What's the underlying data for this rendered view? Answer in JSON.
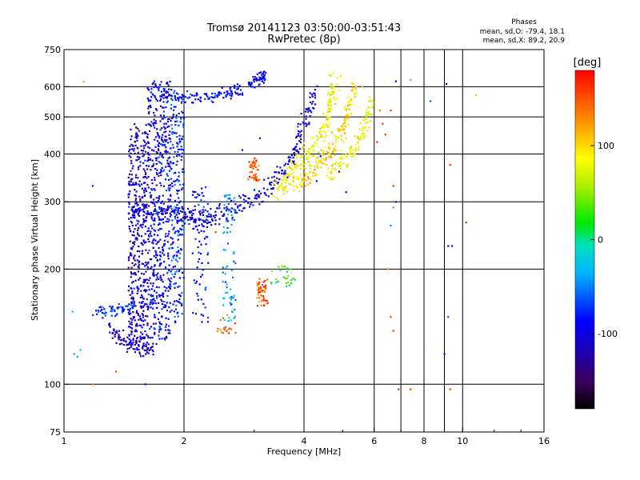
{
  "chart_data": {
    "type": "scatter",
    "title": "Tromsø 20141123 03:50:00-03:51:43",
    "subtitle": "RwPretec (8p)",
    "xlabel": "Frequency [MHz]",
    "ylabel": "Stationary phase Virtual Height [km]",
    "x_scale": "log",
    "y_scale": "log",
    "xlim": [
      1,
      16
    ],
    "ylim": [
      75,
      750
    ],
    "x_ticks": [
      1,
      2,
      4,
      6,
      8,
      10,
      16
    ],
    "x_tick_labels": [
      "1",
      "2",
      "4",
      "6",
      "8",
      "10",
      "16"
    ],
    "x_grid": [
      2,
      4,
      6,
      7,
      8,
      9,
      10
    ],
    "y_ticks": [
      75,
      100,
      200,
      300,
      400,
      500,
      600,
      750
    ],
    "y_tick_labels": [
      "75",
      "100",
      "200",
      "300",
      "400",
      "500",
      "600",
      "750"
    ],
    "y_grid": [
      100,
      200,
      300,
      400,
      500,
      600
    ],
    "grid": true,
    "phases_header": "Phases",
    "stats_O": "mean, sd,O: -79.4, 18.1",
    "stats_X": "mean, sd,X:  89.2, 20.9",
    "colorbar": {
      "label": "[deg]",
      "min": -180,
      "max": 180,
      "ticks": [
        100,
        0,
        -100
      ],
      "tick_labels": [
        "100",
        "0",
        "-100"
      ]
    },
    "traces": [
      {
        "f": [
          1.48,
          1.6,
          1.75,
          1.9,
          2.05,
          2.2,
          2.4,
          2.65,
          2.95,
          3.3,
          3.6,
          3.85,
          4.05,
          4.3
        ],
        "h": [
          275,
          290,
          285,
          278,
          272,
          270,
          275,
          285,
          300,
          330,
          370,
          420,
          500,
          590
        ],
        "phase": -100,
        "spread": 0.03
      },
      {
        "f": [
          3.4,
          3.6,
          3.85,
          4.1,
          4.4,
          4.6,
          4.7,
          4.8
        ],
        "h": [
          320,
          340,
          370,
          400,
          440,
          500,
          560,
          620
        ],
        "phase": 85,
        "spread": 0.035
      },
      {
        "f": [
          3.8,
          4.1,
          4.4,
          4.7,
          5.0,
          5.2,
          5.35
        ],
        "h": [
          330,
          350,
          380,
          410,
          460,
          520,
          610
        ],
        "phase": 100,
        "spread": 0.03
      },
      {
        "f": [
          4.6,
          5.0,
          5.4,
          5.7,
          5.9
        ],
        "h": [
          350,
          380,
          420,
          470,
          560
        ],
        "phase": 80,
        "spread": 0.03
      },
      {
        "f": [
          1.75,
          2.0,
          2.3,
          2.6,
          2.8
        ],
        "h": [
          570,
          560,
          565,
          575,
          590
        ],
        "phase": -85,
        "spread": 0.02
      },
      {
        "f": [
          2.9,
          3.1,
          3.2
        ],
        "h": [
          610,
          630,
          640
        ],
        "phase": -90,
        "spread": 0.02
      },
      {
        "f": [
          1.2,
          1.35,
          1.5
        ],
        "h": [
          155,
          155,
          158
        ],
        "phase": -70,
        "spread": 0.02
      },
      {
        "f": [
          1.3,
          1.4,
          1.55,
          1.7
        ],
        "h": [
          140,
          130,
          123,
          125
        ],
        "phase": -115,
        "spread": 0.02
      }
    ],
    "clusters": [
      {
        "f": [
          1.45,
          1.62
        ],
        "h": [
          125,
          480
        ],
        "n": 420,
        "phase": -110
      },
      {
        "f": [
          1.62,
          1.85
        ],
        "h": [
          130,
          620
        ],
        "n": 520,
        "phase": -95
      },
      {
        "f": [
          1.85,
          2.0
        ],
        "h": [
          145,
          600
        ],
        "n": 220,
        "phase": -75
      },
      {
        "f": [
          2.1,
          2.3
        ],
        "h": [
          145,
          330
        ],
        "n": 80,
        "phase": -85
      },
      {
        "f": [
          2.5,
          2.7
        ],
        "h": [
          140,
          320
        ],
        "n": 70,
        "phase": -40
      },
      {
        "f": [
          3.05,
          3.25
        ],
        "h": [
          160,
          190
        ],
        "n": 45,
        "phase": 150
      },
      {
        "f": [
          2.9,
          3.1
        ],
        "h": [
          340,
          390
        ],
        "n": 40,
        "phase": 150
      },
      {
        "f": [
          3.3,
          3.8
        ],
        "h": [
          180,
          205
        ],
        "n": 25,
        "phase": 20
      },
      {
        "f": [
          2.4,
          2.7
        ],
        "h": [
          135,
          155
        ],
        "n": 18,
        "phase": 140
      }
    ],
    "scattered_points": [
      {
        "f": 1.06,
        "h": 120,
        "phase": -40
      },
      {
        "f": 1.08,
        "h": 118,
        "phase": -40
      },
      {
        "f": 1.1,
        "h": 123,
        "phase": -30
      },
      {
        "f": 1.05,
        "h": 155,
        "phase": -30
      },
      {
        "f": 1.18,
        "h": 330,
        "phase": -80
      },
      {
        "f": 1.12,
        "h": 618,
        "phase": 120
      },
      {
        "f": 1.18,
        "h": 100,
        "phase": 140
      },
      {
        "f": 1.35,
        "h": 108,
        "phase": 160
      },
      {
        "f": 1.6,
        "h": 100,
        "phase": -100
      },
      {
        "f": 6.8,
        "h": 620,
        "phase": -90
      },
      {
        "f": 7.4,
        "h": 625,
        "phase": 130
      },
      {
        "f": 8.3,
        "h": 550,
        "phase": -60
      },
      {
        "f": 9.1,
        "h": 610,
        "phase": -100
      },
      {
        "f": 10.8,
        "h": 570,
        "phase": 110
      },
      {
        "f": 6.3,
        "h": 480,
        "phase": 160
      },
      {
        "f": 6.6,
        "h": 520,
        "phase": 160
      },
      {
        "f": 6.2,
        "h": 520,
        "phase": 130
      },
      {
        "f": 6.4,
        "h": 450,
        "phase": 160
      },
      {
        "f": 6.1,
        "h": 430,
        "phase": 170
      },
      {
        "f": 6.7,
        "h": 330,
        "phase": 170
      },
      {
        "f": 6.8,
        "h": 300,
        "phase": -80
      },
      {
        "f": 6.7,
        "h": 290,
        "phase": -20
      },
      {
        "f": 6.6,
        "h": 260,
        "phase": -50
      },
      {
        "f": 6.5,
        "h": 200,
        "phase": 130
      },
      {
        "f": 6.6,
        "h": 150,
        "phase": 160
      },
      {
        "f": 6.7,
        "h": 138,
        "phase": 160
      },
      {
        "f": 6.9,
        "h": 97,
        "phase": 170
      },
      {
        "f": 7.4,
        "h": 97,
        "phase": 160
      },
      {
        "f": 9.3,
        "h": 97,
        "phase": 160
      },
      {
        "f": 9.3,
        "h": 375,
        "phase": 160
      },
      {
        "f": 9.2,
        "h": 230,
        "phase": -110
      },
      {
        "f": 9.4,
        "h": 230,
        "phase": -100
      },
      {
        "f": 10.2,
        "h": 265,
        "phase": 170
      },
      {
        "f": 9.2,
        "h": 150,
        "phase": -60
      },
      {
        "f": 9.0,
        "h": 120,
        "phase": -80
      },
      {
        "f": 4.4,
        "h": 395,
        "phase": -80
      },
      {
        "f": 4.3,
        "h": 340,
        "phase": -100
      },
      {
        "f": 3.7,
        "h": 200,
        "phase": 40
      },
      {
        "f": 3.4,
        "h": 188,
        "phase": 40
      },
      {
        "f": 2.4,
        "h": 250,
        "phase": 160
      },
      {
        "f": 2.8,
        "h": 410,
        "phase": -90
      },
      {
        "f": 2.6,
        "h": 140,
        "phase": 150
      },
      {
        "f": 3.1,
        "h": 440,
        "phase": -100
      },
      {
        "f": 5.1,
        "h": 318,
        "phase": -100
      },
      {
        "f": 4.9,
        "h": 360,
        "phase": -100
      },
      {
        "f": 5.6,
        "h": 600,
        "phase": 60
      }
    ]
  }
}
